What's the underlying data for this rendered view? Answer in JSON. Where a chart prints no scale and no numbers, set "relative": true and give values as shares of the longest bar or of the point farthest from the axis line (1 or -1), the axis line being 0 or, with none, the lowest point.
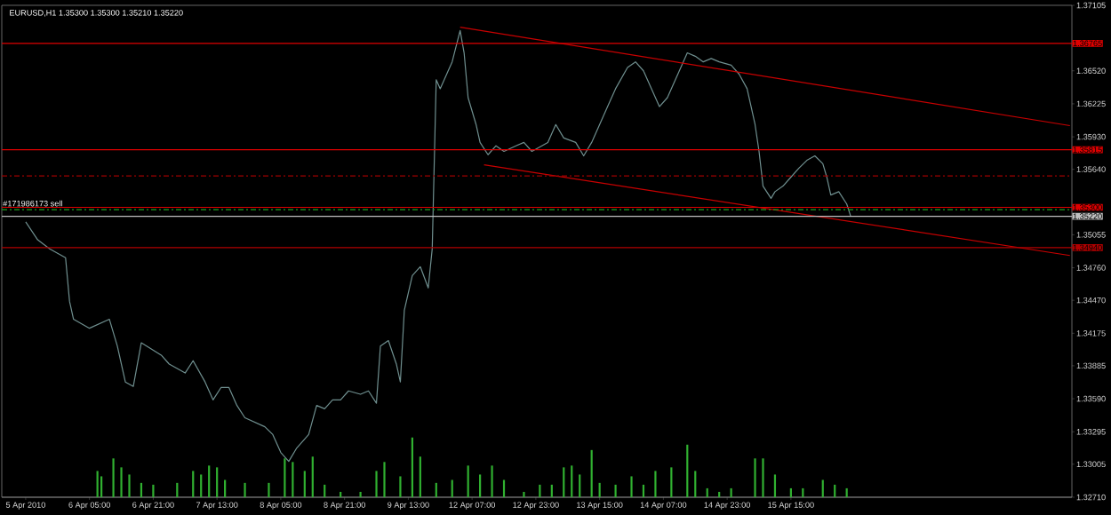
{
  "chart_data": [
    {
      "type": "line",
      "title": "EURUSD,H1 1.35300 1.35300 1.35210 1.35220",
      "categories": [
        "5 Apr 2010",
        null,
        null,
        null,
        null,
        null,
        null,
        null,
        null,
        null,
        null,
        null,
        null,
        null,
        null,
        null,
        "6 Apr 05:00",
        null,
        null,
        null,
        null,
        null,
        null,
        null,
        null,
        null,
        null,
        null,
        null,
        null,
        null,
        null,
        "6 Apr 21:00",
        null,
        null,
        null,
        null,
        null,
        null,
        null,
        null,
        null,
        null,
        null,
        null,
        null,
        null,
        null,
        "7 Apr 13:00",
        null,
        null,
        null,
        null,
        null,
        null,
        null,
        null,
        null,
        null,
        null,
        null,
        null,
        null,
        null,
        "8 Apr 05:00",
        null,
        null,
        null,
        null,
        null,
        null,
        null,
        null,
        null,
        null,
        null,
        null,
        null,
        null,
        null,
        "8 Apr 21:00",
        null,
        null,
        null,
        null,
        null,
        null,
        null,
        null,
        null,
        null,
        null,
        null,
        null,
        null,
        null,
        "9 Apr 13:00",
        null,
        null,
        null,
        null,
        null,
        null,
        null,
        null,
        null,
        null,
        null,
        null,
        null,
        null,
        null,
        "12 Apr 07:00",
        null,
        null,
        null,
        null,
        null,
        null,
        null,
        null,
        null,
        null,
        null,
        null,
        null,
        null,
        null,
        "12 Apr 23:00",
        null,
        null,
        null,
        null,
        null,
        null,
        null,
        null,
        null,
        null,
        null,
        null,
        null,
        null,
        null,
        "13 Apr 15:00",
        null,
        null,
        null,
        null,
        null,
        null,
        null,
        null,
        null,
        null,
        null,
        null,
        null,
        null,
        null,
        "14 Apr 07:00",
        null,
        null,
        null,
        null,
        null,
        null,
        null,
        null,
        null,
        null,
        null,
        null,
        null,
        null,
        null,
        "14 Apr 23:00",
        null,
        null,
        null,
        null,
        null,
        null,
        null,
        null,
        null,
        null,
        null,
        null,
        null,
        null,
        null,
        "15 Apr 15:00",
        null,
        null,
        null,
        null,
        null,
        null,
        null,
        null,
        null,
        null,
        null,
        null,
        null,
        null,
        null,
        null,
        null,
        null,
        null,
        null,
        null,
        null,
        null,
        null,
        null,
        null,
        null,
        null,
        null,
        null,
        null,
        null,
        null,
        null,
        null,
        null,
        null,
        null,
        null,
        null,
        null,
        null,
        null,
        null,
        null,
        null,
        null,
        null,
        null,
        null,
        null,
        null,
        null,
        null,
        null,
        null,
        null,
        null,
        null,
        null,
        null,
        null,
        null,
        null,
        null,
        null,
        null,
        null,
        null,
        null
      ],
      "ylim": [
        1.3271,
        1.37105
      ],
      "yticks": [
        1.37105,
        {
          "value": 1.3652,
          "label": "1.36520"
        },
        1.36225,
        {
          "value": 1.3593,
          "label": "1.35930"
        },
        {
          "value": 1.3564,
          "label": "1.35640"
        },
        1.35055,
        {
          "value": 1.3476,
          "label": "1.34760"
        },
        {
          "value": 1.3447,
          "label": "1.34470"
        },
        1.34175,
        1.33885,
        {
          "value": 1.3359,
          "label": "1.33590"
        },
        1.33295,
        1.33005,
        {
          "value": 1.3271,
          "label": "1.32710"
        }
      ],
      "series": [
        {
          "color": "#6f8f8f",
          "values": [
            1.3517,
            null,
            null,
            1.3501,
            null,
            null,
            1.3493,
            null,
            null,
            null,
            1.3485,
            1.3446,
            1.343,
            null,
            null,
            null,
            1.3422,
            null,
            null,
            null,
            null,
            1.343,
            null,
            1.3406,
            null,
            1.3374,
            null,
            1.337,
            null,
            1.3409,
            null,
            null,
            null,
            null,
            1.3398,
            null,
            1.339,
            null,
            null,
            null,
            1.3382,
            null,
            1.3393,
            null,
            null,
            1.3374,
            null,
            1.3358,
            null,
            1.3369,
            null,
            1.3369,
            null,
            1.3353,
            null,
            1.3342,
            null,
            null,
            null,
            null,
            1.3334,
            null,
            1.3327,
            null,
            1.3311,
            null,
            1.3303,
            null,
            1.3315,
            null,
            null,
            1.3327,
            null,
            1.3353,
            null,
            1.335,
            null,
            1.3358,
            null,
            1.3358,
            null,
            1.3366,
            null,
            null,
            1.3363,
            null,
            1.3366,
            null,
            1.3355,
            1.3406,
            null,
            1.3411,
            null,
            1.339,
            1.3374,
            1.3438,
            null,
            1.3469,
            null,
            1.3477,
            null,
            1.3458,
            1.3493,
            1.3644,
            1.3636,
            null,
            1.3652,
            1.366,
            null,
            1.3688,
            1.3668,
            1.3628,
            null,
            1.3604,
            1.3588,
            null,
            1.3577,
            null,
            1.3585,
            null,
            1.358,
            null,
            null,
            1.3585,
            null,
            1.3588,
            null,
            1.358,
            null,
            1.3584,
            null,
            1.3588,
            null,
            1.3604,
            null,
            1.3592,
            null,
            null,
            1.3588,
            null,
            1.3576,
            null,
            1.3588,
            null,
            1.3604,
            null,
            1.362,
            null,
            1.3636,
            null,
            null,
            1.3655,
            null,
            1.366,
            null,
            1.3652,
            null,
            1.3636,
            null,
            1.362,
            null,
            1.3628,
            null,
            null,
            1.3652,
            null,
            1.3668,
            null,
            1.3665,
            null,
            1.366,
            null,
            1.3663,
            null,
            1.366,
            null,
            null,
            1.3657,
            null,
            1.3649,
            null,
            1.3636,
            null,
            1.3604,
            1.358,
            1.3549,
            null,
            1.3538,
            1.3544,
            null,
            1.3549,
            null,
            1.3557,
            null,
            1.3565,
            null,
            1.3572,
            null,
            1.3576,
            null,
            1.3569,
            1.3557,
            1.3541,
            null,
            1.3544,
            null,
            1.3533,
            1.3522,
            null,
            null,
            null,
            null,
            null,
            null,
            null,
            null,
            null,
            null,
            null,
            null,
            null,
            null,
            null,
            null,
            null,
            null,
            null,
            null,
            null,
            null,
            null,
            null,
            null,
            null,
            null,
            null,
            null,
            null,
            null,
            null,
            null,
            null,
            null,
            null,
            null,
            null,
            null,
            null,
            null,
            null,
            null,
            null,
            null,
            null,
            null,
            null,
            null,
            null,
            null,
            null,
            null,
            null,
            null
          ]
        },
        {
          "color": "#c80000",
          "values": [
            null,
            null,
            null,
            null,
            null,
            null,
            null,
            null,
            null,
            null,
            null,
            null,
            null,
            null,
            null,
            null,
            null,
            null,
            null,
            null,
            null,
            null,
            null,
            null,
            null,
            null,
            null,
            null,
            null,
            null,
            null,
            null,
            null,
            null,
            null,
            null,
            null,
            null,
            null,
            null,
            null,
            null,
            null,
            null,
            null,
            null,
            null,
            null,
            null,
            null,
            null,
            null,
            null,
            null,
            null,
            null,
            null,
            null,
            null,
            null,
            null,
            null,
            null,
            null,
            null,
            null,
            null,
            null,
            null,
            null,
            null,
            null,
            null,
            null,
            null,
            null,
            null,
            null,
            null,
            null,
            null,
            null,
            null,
            null,
            null,
            null,
            null,
            null,
            null,
            null,
            null,
            null,
            null,
            null,
            null,
            null,
            null,
            null,
            null,
            null,
            null,
            null,
            null,
            null,
            null,
            null,
            null,
            null,
            null,
            1.3691,
            null,
            null,
            null,
            null,
            null,
            null,
            null,
            null,
            null,
            null,
            null,
            null,
            null,
            null,
            null,
            null,
            null,
            null,
            null,
            null,
            null,
            null,
            null,
            null,
            null,
            null,
            null,
            null,
            null,
            null,
            null,
            null,
            null,
            null,
            null,
            null,
            null,
            null,
            null,
            null,
            null,
            null,
            null,
            null,
            null,
            null,
            null,
            null,
            null,
            null,
            null,
            null,
            null,
            null,
            null,
            null,
            null,
            null,
            null,
            null,
            null,
            null,
            null,
            null,
            null,
            null,
            null,
            null,
            null,
            null,
            null,
            null,
            null,
            null,
            null,
            null,
            null,
            null,
            null,
            null,
            null,
            null,
            null,
            null,
            null,
            null,
            null,
            null,
            null,
            null,
            null,
            null,
            null,
            null,
            null,
            null,
            null,
            null,
            null,
            null,
            null,
            null,
            null,
            null,
            null,
            null,
            null,
            null,
            null,
            null,
            null,
            null,
            null,
            null,
            null,
            null,
            null,
            null,
            null,
            null,
            null,
            null,
            null,
            null,
            null,
            null,
            null,
            null,
            null,
            null,
            null,
            null,
            null,
            null,
            null,
            null,
            null,
            null,
            null,
            null,
            null,
            null,
            null,
            null,
            null,
            null,
            null,
            null,
            null,
            null,
            null,
            null,
            1.3603
          ]
        },
        {
          "color": "#c80000",
          "values": [
            null,
            null,
            null,
            null,
            null,
            null,
            null,
            null,
            null,
            null,
            null,
            null,
            null,
            null,
            null,
            null,
            null,
            null,
            null,
            null,
            null,
            null,
            null,
            null,
            null,
            null,
            null,
            null,
            null,
            null,
            null,
            null,
            null,
            null,
            null,
            null,
            null,
            null,
            null,
            null,
            null,
            null,
            null,
            null,
            null,
            null,
            null,
            null,
            null,
            null,
            null,
            null,
            null,
            null,
            null,
            null,
            null,
            null,
            null,
            null,
            null,
            null,
            null,
            null,
            null,
            null,
            null,
            null,
            null,
            null,
            null,
            null,
            null,
            null,
            null,
            null,
            null,
            null,
            null,
            null,
            null,
            null,
            null,
            null,
            null,
            null,
            null,
            null,
            null,
            null,
            null,
            null,
            null,
            null,
            null,
            null,
            null,
            null,
            null,
            null,
            null,
            null,
            null,
            null,
            null,
            null,
            null,
            null,
            null,
            null,
            null,
            null,
            null,
            null,
            null,
            1.3568,
            null,
            null,
            null,
            null,
            null,
            null,
            null,
            null,
            null,
            null,
            null,
            null,
            null,
            null,
            null,
            null,
            null,
            null,
            null,
            null,
            null,
            null,
            null,
            null,
            null,
            null,
            null,
            null,
            null,
            null,
            null,
            null,
            null,
            null,
            null,
            null,
            null,
            null,
            null,
            null,
            null,
            null,
            null,
            null,
            null,
            null,
            null,
            null,
            null,
            null,
            null,
            null,
            null,
            null,
            null,
            null,
            null,
            null,
            null,
            null,
            null,
            null,
            null,
            null,
            null,
            null,
            null,
            null,
            null,
            null,
            null,
            null,
            null,
            null,
            null,
            null,
            null,
            null,
            null,
            null,
            null,
            null,
            null,
            null,
            null,
            null,
            null,
            null,
            null,
            null,
            null,
            null,
            null,
            null,
            null,
            null,
            null,
            null,
            null,
            null,
            null,
            null,
            null,
            null,
            null,
            null,
            null,
            null,
            null,
            null,
            null,
            null,
            null,
            null,
            null,
            null,
            null,
            null,
            null,
            null,
            null,
            null,
            null,
            null,
            null,
            null,
            null,
            null,
            null,
            null,
            null,
            null,
            null,
            null,
            null,
            null,
            null,
            null,
            null,
            null,
            null,
            null,
            null,
            null,
            null,
            null,
            1.3487
          ]
        }
      ],
      "ref_lines": [
        {
          "axis": "y",
          "value": 1.36765,
          "label": "1.36765",
          "color": "#e00000",
          "line_style": "solid"
        },
        {
          "axis": "y",
          "value": 1.35815,
          "label": "1.35815",
          "color": "#e00000",
          "line_style": "solid"
        },
        {
          "axis": "y",
          "value": 1.3558,
          "color": "#a00000",
          "line_style": "dashed"
        },
        {
          "axis": "y",
          "value": 1.353,
          "label": "1.35300",
          "color": "#e00000",
          "line_style": "solid"
        },
        {
          "axis": "y",
          "value": 1.3528,
          "label": "#171986173 sell",
          "color": "#20a020",
          "line_style": "dashed"
        },
        {
          "axis": "y",
          "value": 1.3522,
          "label": "1.35220",
          "color": "#c0c0c0",
          "line_style": "solid"
        },
        {
          "axis": "y",
          "value": 1.3494,
          "label": "1.34940",
          "color": "#b00000",
          "line_style": "solid"
        }
      ]
    },
    {
      "type": "bar",
      "relative": true,
      "color": "#30b030",
      "categories": [
        null,
        null,
        null,
        null,
        null,
        null,
        null,
        null,
        null,
        null,
        null,
        null,
        null,
        null,
        null,
        null,
        null,
        null,
        null,
        null,
        null,
        null,
        null,
        null,
        null,
        null,
        null,
        null,
        null,
        null,
        null,
        null,
        null,
        null,
        null,
        null,
        null,
        null,
        null,
        null,
        null,
        null,
        null,
        null,
        null,
        null,
        null,
        null,
        null,
        null,
        null,
        null,
        null,
        null,
        null,
        null,
        null,
        null,
        null,
        null,
        null,
        null,
        null,
        null,
        null,
        null,
        null,
        null,
        null,
        null,
        null,
        null,
        null,
        null,
        null,
        null,
        null,
        null,
        null,
        null,
        null,
        null,
        null,
        null,
        null,
        null,
        null,
        null,
        null,
        null,
        null,
        null,
        null,
        null,
        null,
        null,
        null,
        null,
        null,
        null,
        null,
        null,
        null,
        null,
        null,
        null,
        null,
        null,
        null,
        null,
        null,
        null,
        null,
        null,
        null,
        null,
        null,
        null,
        null,
        null,
        null,
        null,
        null,
        null,
        null,
        null,
        null,
        null,
        null,
        null,
        null,
        null,
        null,
        null,
        null,
        null,
        null,
        null,
        null,
        null,
        null,
        null,
        null,
        null,
        null,
        null,
        null,
        null,
        null,
        null,
        null,
        null,
        null,
        null,
        null,
        null,
        null,
        null,
        null,
        null,
        null,
        null,
        null,
        null,
        null,
        null,
        null,
        null,
        null,
        null,
        null,
        null,
        null,
        null,
        null,
        null,
        null,
        null,
        null,
        null,
        null,
        null,
        null,
        null,
        null,
        null,
        null,
        null,
        null,
        null,
        null,
        null,
        null,
        null,
        null,
        null,
        null,
        null,
        null,
        null,
        null,
        null,
        null,
        null,
        null,
        null,
        null,
        null,
        null,
        null,
        null,
        null,
        null,
        null,
        null,
        null,
        null,
        null,
        null,
        null,
        null,
        null,
        null,
        null,
        null,
        null,
        null,
        null,
        null,
        null,
        null,
        null,
        null,
        null,
        null,
        null,
        null,
        null,
        null,
        null,
        null,
        null,
        null,
        null,
        null,
        null,
        null,
        null,
        null,
        null,
        null,
        null,
        null,
        null,
        null,
        null,
        null,
        null,
        null,
        null,
        null,
        null,
        null
      ],
      "values": [
        null,
        null,
        null,
        null,
        null,
        null,
        null,
        null,
        null,
        null,
        null,
        null,
        null,
        null,
        null,
        null,
        null,
        null,
        0.44,
        0.35,
        null,
        null,
        0.65,
        null,
        0.5,
        null,
        0.38,
        null,
        null,
        0.24,
        null,
        null,
        0.21,
        null,
        null,
        null,
        null,
        null,
        0.24,
        null,
        null,
        null,
        0.44,
        null,
        0.38,
        null,
        0.53,
        null,
        0.5,
        null,
        0.29,
        null,
        null,
        null,
        null,
        0.24,
        null,
        null,
        null,
        null,
        null,
        0.24,
        null,
        null,
        null,
        0.65,
        null,
        0.59,
        null,
        null,
        0.44,
        null,
        0.68,
        null,
        null,
        0.21,
        null,
        null,
        null,
        0.09,
        null,
        null,
        null,
        null,
        0.09,
        null,
        null,
        null,
        0.44,
        null,
        0.59,
        null,
        null,
        null,
        0.35,
        null,
        null,
        1,
        null,
        0.68,
        null,
        null,
        null,
        0.24,
        null,
        null,
        null,
        0.29,
        null,
        null,
        null,
        0.53,
        null,
        null,
        0.38,
        null,
        null,
        0.53,
        null,
        null,
        0.29,
        null,
        null,
        null,
        null,
        0.09,
        null,
        null,
        null,
        0.21,
        null,
        null,
        0.21,
        null,
        null,
        0.5,
        null,
        0.53,
        null,
        0.38,
        null,
        null,
        0.79,
        null,
        0.24,
        null,
        null,
        null,
        0.21,
        null,
        null,
        null,
        0.35,
        null,
        null,
        0.21,
        null,
        null,
        0.44,
        null,
        null,
        null,
        0.5,
        null,
        null,
        null,
        0.88,
        null,
        0.44,
        null,
        null,
        0.15,
        null,
        null,
        0.09,
        null,
        null,
        0.15,
        null,
        null,
        null,
        null,
        null,
        0.65,
        null,
        0.65,
        null,
        null,
        0.38,
        null,
        null,
        null,
        0.15,
        null,
        null,
        0.15,
        null,
        null,
        null,
        null,
        0.29,
        null,
        null,
        0.21,
        null,
        null,
        0.15,
        null,
        null,
        null,
        null,
        null,
        null,
        null,
        null,
        null,
        null,
        null,
        null,
        null,
        null,
        null,
        null,
        null,
        null,
        null,
        null,
        null,
        null,
        null,
        null,
        null,
        null,
        null,
        null,
        null,
        null,
        null,
        null,
        null,
        null,
        null,
        null,
        null,
        null,
        null,
        null,
        null,
        null,
        null,
        null,
        null,
        null,
        null,
        null,
        null,
        null,
        null,
        null,
        null,
        null,
        null,
        null
      ]
    }
  ]
}
